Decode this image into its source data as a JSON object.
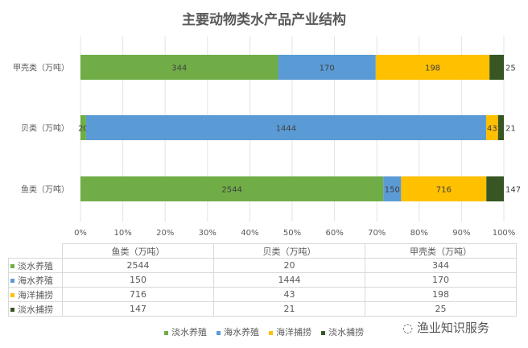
{
  "chart_data": {
    "type": "bar",
    "orientation": "horizontal",
    "stacked": "percent",
    "title": "主要动物类水产品产业结构",
    "categories": [
      "甲壳类（万吨）",
      "贝类（万吨）",
      "鱼类（万吨）"
    ],
    "table_categories": [
      "鱼类（万吨）",
      "贝类（万吨）",
      "甲壳类（万吨）"
    ],
    "series": [
      {
        "name": "淡水养殖",
        "color": "#70ad47",
        "values": [
          344,
          20,
          2544
        ]
      },
      {
        "name": "海水养殖",
        "color": "#5b9bd5",
        "values": [
          170,
          1444,
          150
        ]
      },
      {
        "name": "海洋捕捞",
        "color": "#ffc000",
        "values": [
          198,
          43,
          716
        ]
      },
      {
        "name": "淡水捕捞",
        "color": "#375623",
        "values": [
          25,
          21,
          147
        ]
      }
    ],
    "xticks": [
      "0%",
      "10%",
      "20%",
      "30%",
      "40%",
      "50%",
      "60%",
      "70%",
      "80%",
      "90%",
      "100%"
    ],
    "xlim": [
      0,
      100
    ],
    "grid": true,
    "legend": "bottom",
    "data_table": true
  },
  "watermark": "渔业知识服务"
}
